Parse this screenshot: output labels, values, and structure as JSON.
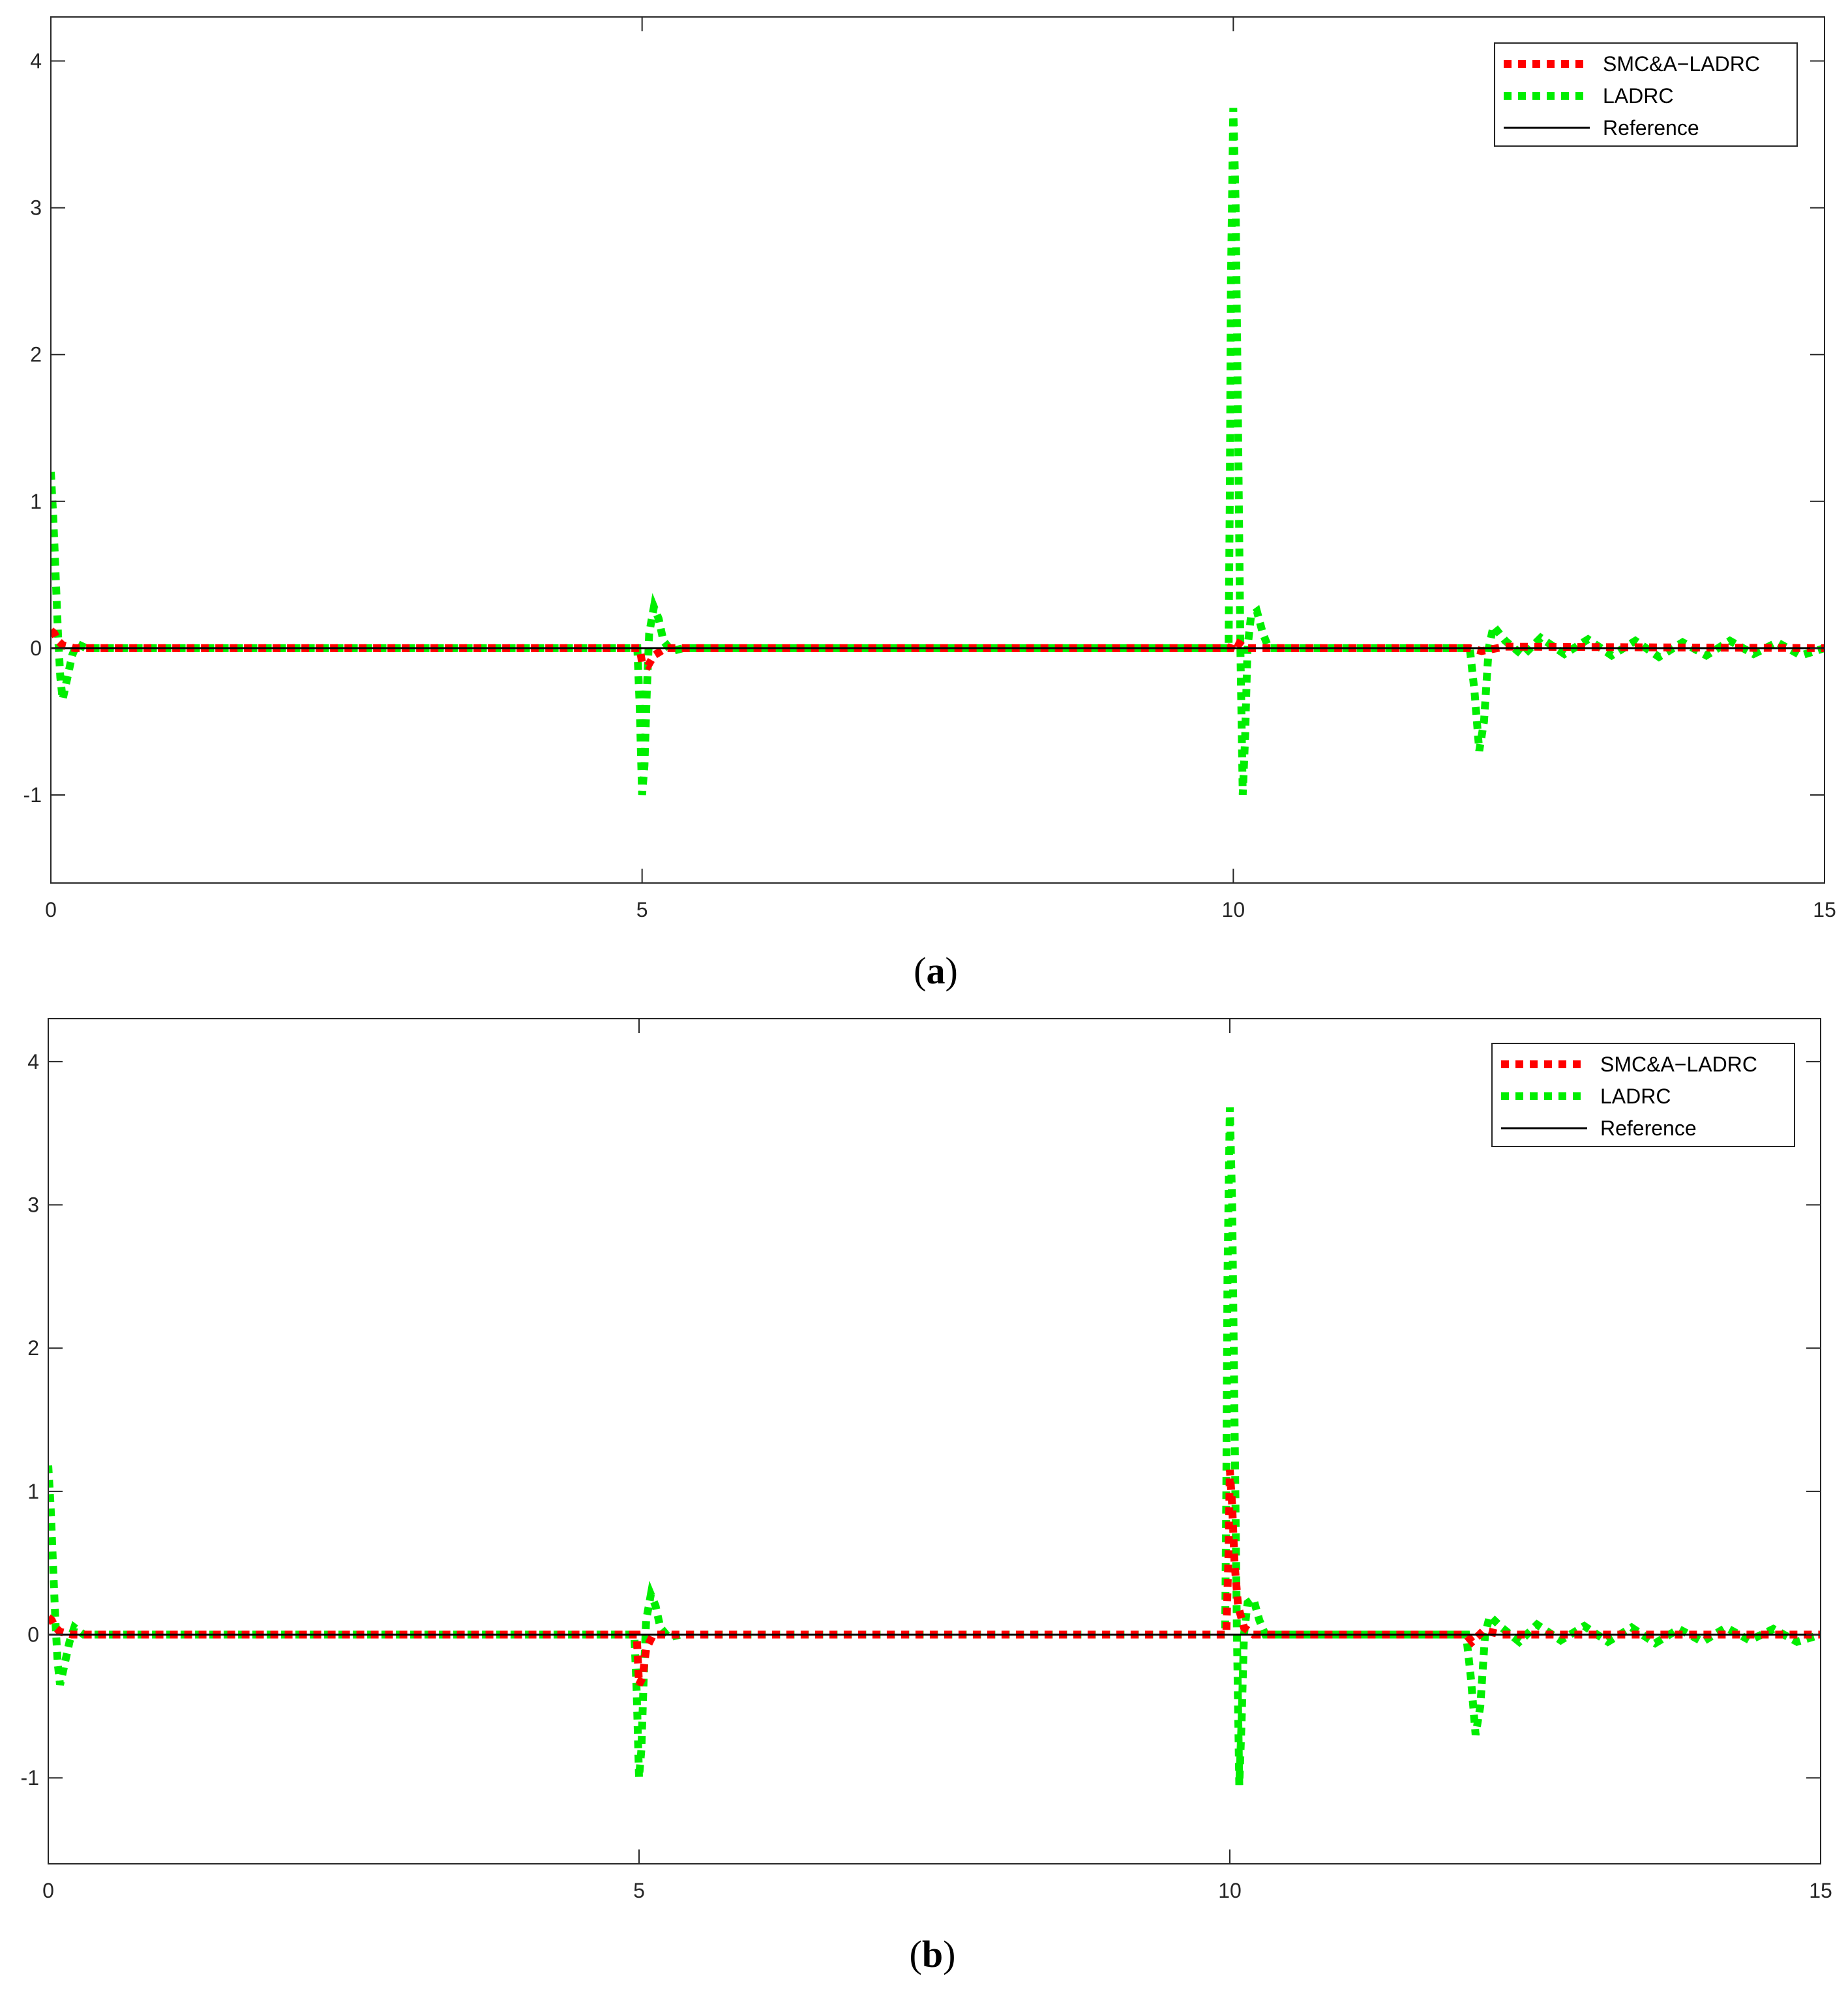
{
  "colors": {
    "smc_series": "#ff0000",
    "ladrc_series": "#00ee00",
    "reference": "#000000",
    "axes": "#262626"
  },
  "chart_data": [
    {
      "type": "line",
      "caption": {
        "open": "(",
        "letter": "a",
        "close": ")"
      },
      "title": "",
      "xlabel": "",
      "ylabel": "",
      "xlim": [
        0,
        15
      ],
      "ylim": [
        -1.6,
        4.3
      ],
      "x_ticks": [
        "0",
        "5",
        "10",
        "15"
      ],
      "y_ticks": [
        "-1",
        "0",
        "1",
        "2",
        "3",
        "4"
      ],
      "grid": false,
      "legend_position": "top-right",
      "series": [
        {
          "name": "SMC&A−LADRC",
          "style": "dotted",
          "color": "#ff0000",
          "points": [
            [
              0,
              0.12
            ],
            [
              0.03,
              0.1
            ],
            [
              0.06,
              0.05
            ],
            [
              0.1,
              0.02
            ],
            [
              0.2,
              0
            ],
            [
              4.98,
              0
            ],
            [
              5.0,
              -0.1
            ],
            [
              5.05,
              -0.12
            ],
            [
              5.1,
              -0.05
            ],
            [
              5.2,
              0
            ],
            [
              9.98,
              0
            ],
            [
              10.0,
              0.05
            ],
            [
              10.05,
              0.03
            ],
            [
              10.1,
              0
            ],
            [
              12.0,
              0
            ],
            [
              12.1,
              -0.02
            ],
            [
              12.3,
              0.01
            ],
            [
              15,
              0
            ]
          ]
        },
        {
          "name": "LADRC",
          "style": "dotted",
          "color": "#00ee00",
          "points": [
            [
              0,
              1.2
            ],
            [
              0.02,
              0.9
            ],
            [
              0.04,
              0.5
            ],
            [
              0.06,
              0.1
            ],
            [
              0.08,
              -0.2
            ],
            [
              0.1,
              -0.35
            ],
            [
              0.14,
              -0.2
            ],
            [
              0.18,
              -0.05
            ],
            [
              0.22,
              0.03
            ],
            [
              0.3,
              0
            ],
            [
              4.96,
              0
            ],
            [
              4.98,
              -0.4
            ],
            [
              5.0,
              -1.0
            ],
            [
              5.02,
              -0.8
            ],
            [
              5.04,
              -0.3
            ],
            [
              5.06,
              0.1
            ],
            [
              5.1,
              0.28
            ],
            [
              5.14,
              0.2
            ],
            [
              5.18,
              0.05
            ],
            [
              5.25,
              -0.02
            ],
            [
              5.35,
              0
            ],
            [
              9.96,
              0
            ],
            [
              9.97,
              1.0
            ],
            [
              9.98,
              2.5
            ],
            [
              10.0,
              3.68
            ],
            [
              10.02,
              3.0
            ],
            [
              10.04,
              1.5
            ],
            [
              10.06,
              0.0
            ],
            [
              10.08,
              -1.0
            ],
            [
              10.1,
              -0.6
            ],
            [
              10.12,
              0.0
            ],
            [
              10.15,
              0.22
            ],
            [
              10.2,
              0.25
            ],
            [
              10.25,
              0.1
            ],
            [
              10.3,
              0
            ],
            [
              10.4,
              0
            ],
            [
              12.0,
              0
            ],
            [
              12.04,
              -0.3
            ],
            [
              12.08,
              -0.7
            ],
            [
              12.12,
              -0.5
            ],
            [
              12.16,
              0.0
            ],
            [
              12.2,
              0.15
            ],
            [
              12.3,
              0.05
            ],
            [
              12.45,
              -0.05
            ],
            [
              12.6,
              0.07
            ],
            [
              12.8,
              -0.04
            ],
            [
              13.0,
              0.06
            ],
            [
              13.2,
              -0.05
            ],
            [
              13.4,
              0.05
            ],
            [
              13.6,
              -0.06
            ],
            [
              13.8,
              0.04
            ],
            [
              14.0,
              -0.05
            ],
            [
              14.2,
              0.05
            ],
            [
              14.4,
              -0.04
            ],
            [
              14.6,
              0.04
            ],
            [
              14.8,
              -0.05
            ],
            [
              15.0,
              0.0
            ]
          ]
        },
        {
          "name": "Reference",
          "style": "solid",
          "color": "#000000",
          "points": [
            [
              0,
              0
            ],
            [
              15,
              0
            ]
          ]
        }
      ]
    },
    {
      "type": "line",
      "caption": {
        "open": "(",
        "letter": "b",
        "close": ")"
      },
      "title": "",
      "xlabel": "",
      "ylabel": "",
      "xlim": [
        0,
        15
      ],
      "ylim": [
        -1.6,
        4.3
      ],
      "x_ticks": [
        "0",
        "5",
        "10",
        "15"
      ],
      "y_ticks": [
        "-1",
        "0",
        "1",
        "2",
        "3",
        "4"
      ],
      "grid": false,
      "legend_position": "top-right",
      "series": [
        {
          "name": "SMC&A−LADRC",
          "style": "dotted",
          "color": "#ff0000",
          "points": [
            [
              0,
              0.12
            ],
            [
              0.03,
              0.1
            ],
            [
              0.06,
              0.05
            ],
            [
              0.1,
              0.02
            ],
            [
              0.2,
              0
            ],
            [
              4.98,
              0
            ],
            [
              5.0,
              -0.35
            ],
            [
              5.03,
              -0.3
            ],
            [
              5.06,
              -0.1
            ],
            [
              5.12,
              0
            ],
            [
              9.97,
              0
            ],
            [
              9.99,
              0.6
            ],
            [
              10.0,
              1.15
            ],
            [
              10.02,
              0.9
            ],
            [
              10.04,
              0.5
            ],
            [
              10.07,
              0.2
            ],
            [
              10.12,
              0.05
            ],
            [
              10.2,
              0
            ],
            [
              12.0,
              0
            ],
            [
              12.05,
              -0.05
            ],
            [
              12.15,
              0.03
            ],
            [
              12.3,
              0
            ],
            [
              15,
              0
            ]
          ]
        },
        {
          "name": "LADRC",
          "style": "dotted",
          "color": "#00ee00",
          "points": [
            [
              0,
              1.18
            ],
            [
              0.02,
              0.9
            ],
            [
              0.04,
              0.5
            ],
            [
              0.06,
              0.1
            ],
            [
              0.08,
              -0.2
            ],
            [
              0.1,
              -0.35
            ],
            [
              0.14,
              -0.2
            ],
            [
              0.18,
              -0.05
            ],
            [
              0.22,
              0.05
            ],
            [
              0.3,
              0
            ],
            [
              4.96,
              0
            ],
            [
              4.98,
              -0.4
            ],
            [
              5.0,
              -1.0
            ],
            [
              5.02,
              -0.8
            ],
            [
              5.04,
              -0.3
            ],
            [
              5.06,
              0.1
            ],
            [
              5.1,
              0.28
            ],
            [
              5.14,
              0.2
            ],
            [
              5.18,
              0.05
            ],
            [
              5.25,
              -0.02
            ],
            [
              5.35,
              0
            ],
            [
              9.96,
              0
            ],
            [
              9.97,
              1.0
            ],
            [
              9.98,
              2.5
            ],
            [
              10.0,
              3.68
            ],
            [
              10.02,
              3.0
            ],
            [
              10.04,
              1.5
            ],
            [
              10.06,
              0.0
            ],
            [
              10.08,
              -1.05
            ],
            [
              10.1,
              -0.6
            ],
            [
              10.12,
              0.0
            ],
            [
              10.15,
              0.22
            ],
            [
              10.2,
              0.25
            ],
            [
              10.25,
              0.1
            ],
            [
              10.3,
              0
            ],
            [
              10.4,
              0
            ],
            [
              12.0,
              0
            ],
            [
              12.04,
              -0.3
            ],
            [
              12.08,
              -0.7
            ],
            [
              12.12,
              -0.5
            ],
            [
              12.16,
              0.0
            ],
            [
              12.2,
              0.13
            ],
            [
              12.3,
              0.05
            ],
            [
              12.45,
              -0.05
            ],
            [
              12.6,
              0.07
            ],
            [
              12.8,
              -0.04
            ],
            [
              13.0,
              0.06
            ],
            [
              13.2,
              -0.05
            ],
            [
              13.4,
              0.05
            ],
            [
              13.6,
              -0.06
            ],
            [
              13.8,
              0.04
            ],
            [
              14.0,
              -0.05
            ],
            [
              14.2,
              0.05
            ],
            [
              14.4,
              -0.04
            ],
            [
              14.6,
              0.04
            ],
            [
              14.8,
              -0.05
            ],
            [
              15.0,
              0.0
            ]
          ]
        },
        {
          "name": "Reference",
          "style": "solid",
          "color": "#000000",
          "points": [
            [
              0,
              0
            ],
            [
              15,
              0
            ]
          ]
        }
      ]
    }
  ]
}
